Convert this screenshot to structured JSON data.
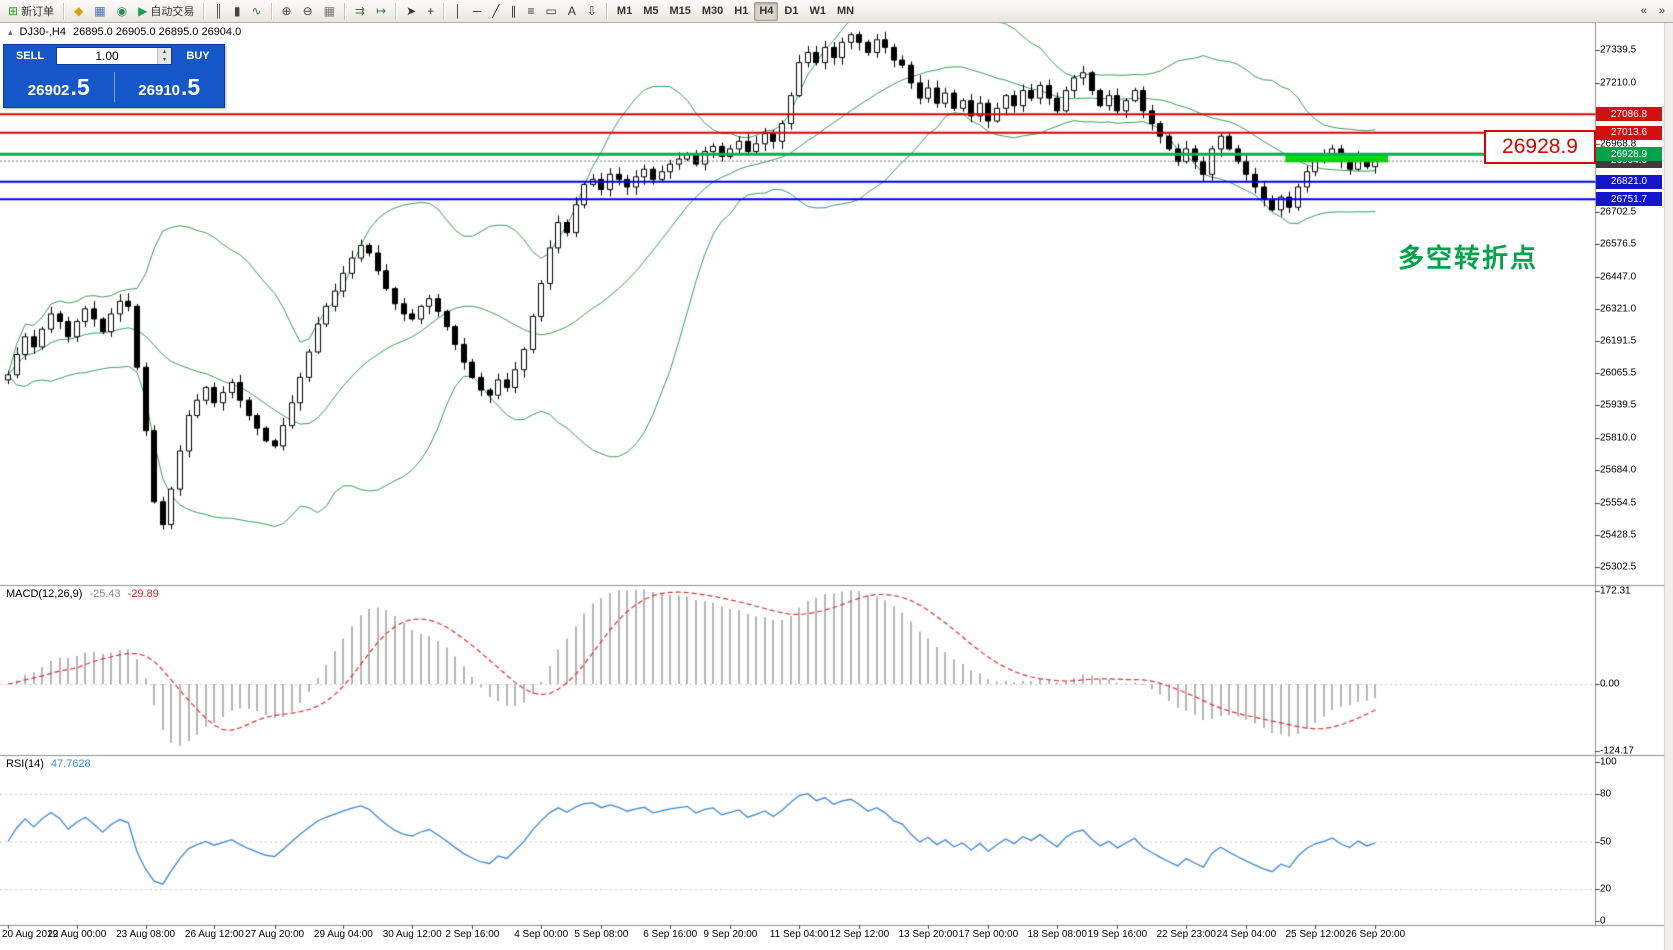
{
  "window": {
    "bg": "#ffffff",
    "toolbar_bg": "#ece9e2"
  },
  "toolbar": {
    "groups": [
      {
        "items": [
          {
            "name": "new-order-button",
            "icon": "new-order-icon",
            "glyph": "⊞",
            "icon_color": "#2e9e2e",
            "label": "新订单"
          }
        ]
      },
      {
        "items": [
          {
            "name": "market-watch-button",
            "icon": "market-watch-icon",
            "glyph": "◆",
            "icon_color": "#d9a400"
          },
          {
            "name": "chart-window-button",
            "icon": "chart-window-icon",
            "glyph": "▦",
            "icon_color": "#3f6faf"
          },
          {
            "name": "navigator-button",
            "icon": "navigator-icon",
            "glyph": "◉",
            "icon_color": "#2e8b57"
          },
          {
            "name": "auto-trading-button",
            "icon": "auto-trading-icon",
            "glyph": "▶",
            "icon_color": "#18a050",
            "label": "自动交易"
          }
        ]
      },
      {
        "items": [
          {
            "name": "bar-chart-button",
            "icon": "bar-chart-icon",
            "glyph": "║",
            "icon_color": "#444444"
          },
          {
            "name": "candlestick-chart-button",
            "icon": "candlestick-icon",
            "glyph": "▮",
            "icon_color": "#444444"
          },
          {
            "name": "line-chart-button",
            "icon": "line-chart-icon",
            "glyph": "∿",
            "icon_color": "#2f7f2f"
          }
        ]
      },
      {
        "items": [
          {
            "name": "zoom-in-button",
            "icon": "zoom-in-icon",
            "glyph": "⊕",
            "icon_color": "#444444"
          },
          {
            "name": "zoom-out-button",
            "icon": "zoom-out-icon",
            "glyph": "⊖",
            "icon_color": "#444444"
          },
          {
            "name": "tile-windows-button",
            "icon": "tile-windows-icon",
            "glyph": "▦",
            "icon_color": "#777777"
          }
        ]
      },
      {
        "items": [
          {
            "name": "auto-scroll-button",
            "icon": "auto-scroll-icon",
            "glyph": "⇉",
            "icon_color": "#2f7f2f"
          },
          {
            "name": "chart-shift-button",
            "icon": "chart-shift-icon",
            "glyph": "↦",
            "icon_color": "#2f7f2f"
          }
        ]
      },
      {
        "items": [
          {
            "name": "cursor-button",
            "icon": "cursor-icon",
            "glyph": "➤",
            "icon_color": "#333333"
          },
          {
            "name": "crosshair-button",
            "icon": "crosshair-icon",
            "glyph": "+",
            "icon_color": "#333333"
          }
        ]
      },
      {
        "items": [
          {
            "name": "vertical-line-button",
            "icon": "vertical-line-icon",
            "glyph": "│",
            "icon_color": "#333333"
          },
          {
            "name": "horizontal-line-button",
            "icon": "horizontal-line-icon",
            "glyph": "─",
            "icon_color": "#333333"
          },
          {
            "name": "trendline-button",
            "icon": "trendline-icon",
            "glyph": "╱",
            "icon_color": "#333333"
          },
          {
            "name": "channel-button",
            "icon": "channel-icon",
            "glyph": "∥",
            "icon_color": "#333333"
          },
          {
            "name": "fibonacci-button",
            "icon": "fibonacci-icon",
            "glyph": "≡",
            "icon_color": "#333333"
          },
          {
            "name": "shapes-button",
            "icon": "shapes-icon",
            "glyph": "▭",
            "icon_color": "#333333"
          },
          {
            "name": "text-button",
            "icon": "text-icon",
            "glyph": "A",
            "icon_color": "#333333"
          },
          {
            "name": "arrows-button",
            "icon": "arrows-icon",
            "glyph": "⇩",
            "icon_color": "#333333"
          }
        ]
      }
    ],
    "timeframes": [
      {
        "label": "M1"
      },
      {
        "label": "M5"
      },
      {
        "label": "M15"
      },
      {
        "label": "M30"
      },
      {
        "label": "H1"
      },
      {
        "label": "H4",
        "active": true
      },
      {
        "label": "D1"
      },
      {
        "label": "W1"
      },
      {
        "label": "MN"
      }
    ],
    "right_icons": [
      {
        "name": "toolbar-customize-icon",
        "glyph": "«"
      },
      {
        "name": "toolbar-overflow-icon",
        "glyph": "»"
      }
    ]
  },
  "chart": {
    "title": {
      "collapse_glyph": "▴",
      "symbol_period": "DJ30-,H4",
      "ohlc_text": "26895.0 26905.0 26895.0 26904.0"
    },
    "one_click": {
      "sell_label": "SELL",
      "buy_label": "BUY",
      "volume": "1.00",
      "sell_price": "26902.5",
      "buy_price": "26910.5",
      "spinner_up": "▴",
      "spinner_down": "▾"
    },
    "annotation": "多空转折点",
    "big_price_label": "26928.9",
    "colors": {
      "bull": "#ffffff",
      "bear": "#000000",
      "outline": "#000000",
      "bollinger": "#3aa05a",
      "zone": "#00dd00",
      "current_line": "#777777"
    },
    "hlines": [
      {
        "price": 27086.8,
        "color": "#e00000",
        "width": 2
      },
      {
        "price": 27013.6,
        "color": "#e00000",
        "width": 2
      },
      {
        "price": 26928.9,
        "color": "#00b050",
        "width": 3
      },
      {
        "price": 26821.0,
        "color": "#0000dd",
        "width": 2
      },
      {
        "price": 26751.7,
        "color": "#0000dd",
        "width": 2
      }
    ],
    "current_price": 26904.0,
    "highlight_zone": {
      "bar_start": 149,
      "bar_end": 160,
      "price_top": 26931,
      "price_bottom": 26897
    },
    "price_axis": {
      "plain_ticks": [
        {
          "price": 27339.5,
          "label": "27339.5"
        },
        {
          "price": 27210.0,
          "label": "27210.0"
        },
        {
          "price": 26968.8,
          "label": "26968.8"
        },
        {
          "price": 26702.5,
          "label": "26702.5"
        },
        {
          "price": 26576.5,
          "label": "26576.5"
        },
        {
          "price": 26447.0,
          "label": "26447.0"
        },
        {
          "price": 26321.0,
          "label": "26321.0"
        },
        {
          "price": 26191.5,
          "label": "26191.5"
        },
        {
          "price": 26065.5,
          "label": "26065.5"
        },
        {
          "price": 25939.5,
          "label": "25939.5"
        },
        {
          "price": 25810.0,
          "label": "25810.0"
        },
        {
          "price": 25684.0,
          "label": "25684.0"
        },
        {
          "price": 25554.5,
          "label": "25554.5"
        },
        {
          "price": 25428.5,
          "label": "25428.5"
        },
        {
          "price": 25302.5,
          "label": "25302.5"
        }
      ],
      "tags": [
        {
          "price": 27086.8,
          "label": "27086.8",
          "bg": "#d31111"
        },
        {
          "price": 27013.6,
          "label": "27013.6",
          "bg": "#d31111"
        },
        {
          "price": 26904.0,
          "label": "26904.0",
          "bg": "#3c3c3c"
        },
        {
          "price": 26928.9,
          "label": "26928.9",
          "bg": "#00a24a"
        },
        {
          "price": 26821.0,
          "label": "26821.0",
          "bg": "#1515cc"
        },
        {
          "price": 26751.7,
          "label": "26751.7",
          "bg": "#1515cc"
        }
      ]
    },
    "time_axis": [
      {
        "label": "20 Aug 2019",
        "bar": 0
      },
      {
        "label": "22 Aug 00:00",
        "bar": 8
      },
      {
        "label": "23 Aug 08:00",
        "bar": 16
      },
      {
        "label": "26 Aug 12:00",
        "bar": 24
      },
      {
        "label": "27 Aug 20:00",
        "bar": 31
      },
      {
        "label": "29 Aug 04:00",
        "bar": 39
      },
      {
        "label": "30 Aug 12:00",
        "bar": 47
      },
      {
        "label": "2 Sep 16:00",
        "bar": 54
      },
      {
        "label": "4 Sep 00:00",
        "bar": 62
      },
      {
        "label": "5 Sep 08:00",
        "bar": 69
      },
      {
        "label": "6 Sep 16:00",
        "bar": 77
      },
      {
        "label": "9 Sep 20:00",
        "bar": 84
      },
      {
        "label": "11 Sep 04:00",
        "bar": 92
      },
      {
        "label": "12 Sep 12:00",
        "bar": 99
      },
      {
        "label": "13 Sep 20:00",
        "bar": 107
      },
      {
        "label": "17 Sep 00:00",
        "bar": 114
      },
      {
        "label": "18 Sep 08:00",
        "bar": 122
      },
      {
        "label": "19 Sep 16:00",
        "bar": 129
      },
      {
        "label": "22 Sep 23:00",
        "bar": 137
      },
      {
        "label": "24 Sep 04:00",
        "bar": 144
      },
      {
        "label": "25 Sep 12:00",
        "bar": 152
      },
      {
        "label": "26 Sep 20:00",
        "bar": 159
      }
    ]
  },
  "indicators": {
    "macd": {
      "name": "MACD(12,26,9)",
      "value_main": "-25.43",
      "value_signal": "-29.89",
      "axis": [
        {
          "label": "172.31",
          "v": 172.31
        },
        {
          "label": "0.00",
          "v": 0
        },
        {
          "label": "-124.17",
          "v": -124.17
        }
      ],
      "colors": {
        "histogram": "#b6b6b6",
        "signal": "#e03131"
      }
    },
    "rsi": {
      "name": "RSI(14)",
      "value": "47.7628",
      "axis": [
        {
          "label": "100",
          "v": 100
        },
        {
          "label": "80",
          "v": 80
        },
        {
          "label": "50",
          "v": 50
        },
        {
          "label": "20",
          "v": 20
        },
        {
          "label": "0",
          "v": 0
        }
      ],
      "levels": [
        80,
        50,
        20
      ],
      "color": "#3f87d6"
    }
  },
  "chart_data": {
    "type": "candlestick",
    "symbol": "DJ30-",
    "timeframe": "H4",
    "title": "DJ30-,H4 26895.0 26905.0 26895.0 26904.0",
    "y_range": [
      25240,
      27450
    ],
    "bollinger": {
      "period": 20,
      "deviation": 2
    },
    "macd_params": [
      12,
      26,
      9
    ],
    "rsi_period": 14,
    "first_open": 26040,
    "closes": [
      26060,
      26140,
      26210,
      26170,
      26240,
      26300,
      26270,
      26210,
      26270,
      26320,
      26280,
      26230,
      26300,
      26350,
      26330,
      26090,
      25840,
      25560,
      25470,
      25610,
      25760,
      25900,
      25960,
      26010,
      25950,
      25990,
      26030,
      25960,
      25900,
      25850,
      25800,
      25780,
      25860,
      25950,
      26050,
      26150,
      26260,
      26330,
      26390,
      26460,
      26520,
      26570,
      26540,
      26470,
      26400,
      26340,
      26300,
      26280,
      26330,
      26360,
      26310,
      26250,
      26180,
      26110,
      26050,
      26000,
      25980,
      26040,
      26010,
      26080,
      26160,
      26290,
      26420,
      26560,
      26660,
      26620,
      26730,
      26810,
      26830,
      26790,
      26850,
      26830,
      26800,
      26840,
      26870,
      26830,
      26860,
      26890,
      26910,
      26930,
      26890,
      26940,
      26960,
      26920,
      26950,
      26980,
      26940,
      26970,
      27010,
      26980,
      27050,
      27160,
      27290,
      27330,
      27290,
      27350,
      27310,
      27370,
      27400,
      27370,
      27330,
      27380,
      27350,
      27300,
      27280,
      27210,
      27150,
      27190,
      27130,
      27170,
      27110,
      27140,
      27080,
      27130,
      27060,
      27110,
      27160,
      27120,
      27180,
      27150,
      27200,
      27150,
      27100,
      27180,
      27230,
      27250,
      27180,
      27120,
      27160,
      27100,
      27140,
      27180,
      27100,
      27050,
      27000,
      26950,
      26900,
      26950,
      26900,
      26850,
      26950,
      27000,
      26950,
      26900,
      26850,
      26800,
      26750,
      26710,
      26760,
      26720,
      26800,
      26860,
      26900,
      26920,
      26950,
      26900,
      26870,
      26920,
      26880,
      26904
    ]
  }
}
